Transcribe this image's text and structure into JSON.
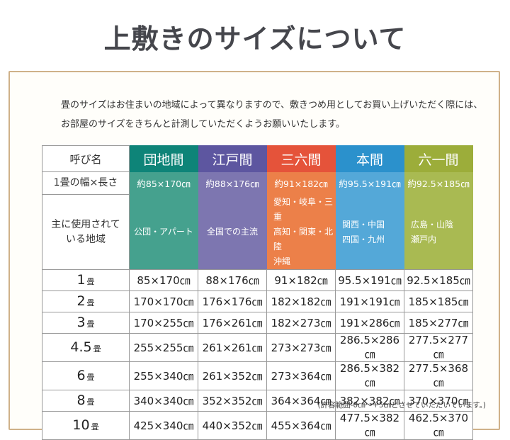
{
  "page": {
    "title": "上敷きのサイズについて",
    "intro": "畳のサイズはお住まいの地域によって異なりますので、敷きつめ用としてお買い上げいただく際には、\nお部屋のサイズをきちんと計測していただくようお願いいたします。",
    "footnote": "(許容範囲-0㎝〜+5㎝とさせていただいています。)"
  },
  "colors": {
    "frame_border": "#cfb189",
    "table_border": "#999999",
    "title_text": "#45464c"
  },
  "table": {
    "corner_label": "呼び名",
    "columns": [
      {
        "label": "団地間",
        "header_color": "#0e8478",
        "light_color": "#45a18e"
      },
      {
        "label": "江戸間",
        "header_color": "#5d56a0",
        "light_color": "#7d76b0"
      },
      {
        "label": "三六間",
        "header_color": "#e5533a",
        "light_color": "#ec8049"
      },
      {
        "label": "本間",
        "header_color": "#2b91cc",
        "light_color": "#54a8d8"
      },
      {
        "label": "六一間",
        "header_color": "#9cad3a",
        "light_color": "#a9ba52"
      }
    ],
    "width_row": {
      "label": "1畳の幅×長さ",
      "values": [
        "約85×170㎝",
        "約88×176㎝",
        "約91×182㎝",
        "約95.5×191㎝",
        "約92.5×185㎝"
      ]
    },
    "region_row": {
      "label": "主に使用されて\nいる地域",
      "values": [
        "公団・アパート",
        "全国での主流",
        "愛知・岐阜・三重\n高知・関東・北陸\n沖縄",
        "関西・中国\n四国・九州",
        "広島・山陰\n瀬戸内"
      ]
    },
    "size_rows": [
      {
        "size": "1",
        "unit": "畳",
        "values": [
          "85×170㎝",
          "88×176㎝",
          "91×182㎝",
          "95.5×191㎝",
          "92.5×185㎝"
        ]
      },
      {
        "size": "2",
        "unit": "畳",
        "values": [
          "170×170㎝",
          "176×176㎝",
          "182×182㎝",
          "191×191㎝",
          "185×185㎝"
        ]
      },
      {
        "size": "3",
        "unit": "畳",
        "values": [
          "170×255㎝",
          "176×261㎝",
          "182×273㎝",
          "191×286㎝",
          "185×277㎝"
        ]
      },
      {
        "size": "4.5",
        "unit": "畳",
        "values": [
          "255×255㎝",
          "261×261㎝",
          "273×273㎝",
          "286.5×286㎝",
          "277.5×277㎝"
        ]
      },
      {
        "size": "6",
        "unit": "畳",
        "values": [
          "255×340㎝",
          "261×352㎝",
          "273×364㎝",
          "286.5×382㎝",
          "277.5×368㎝"
        ]
      },
      {
        "size": "8",
        "unit": "畳",
        "values": [
          "340×340㎝",
          "352×352㎝",
          "364×364㎝",
          "382×382㎝",
          "370×370㎝"
        ]
      },
      {
        "size": "10",
        "unit": "畳",
        "values": [
          "425×340㎝",
          "440×352㎝",
          "455×364㎝",
          "477.5×382㎝",
          "462.5×370㎝"
        ]
      }
    ]
  }
}
